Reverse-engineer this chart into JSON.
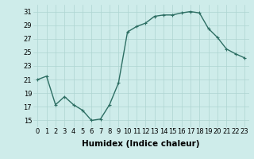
{
  "x": [
    0,
    1,
    2,
    3,
    4,
    5,
    6,
    7,
    8,
    9,
    10,
    11,
    12,
    13,
    14,
    15,
    16,
    17,
    18,
    19,
    20,
    21,
    22,
    23
  ],
  "y": [
    21.0,
    21.5,
    17.3,
    18.5,
    17.3,
    16.5,
    15.0,
    15.2,
    17.3,
    20.5,
    28.0,
    28.8,
    29.3,
    30.3,
    30.5,
    30.5,
    30.8,
    31.0,
    30.8,
    28.5,
    27.2,
    25.5,
    24.8,
    24.2
  ],
  "line_color": "#2d6e63",
  "marker": "+",
  "marker_size": 3,
  "background_color": "#ceecea",
  "grid_color": "#aed4d1",
  "xlabel": "Humidex (Indice chaleur)",
  "xlim": [
    -0.5,
    23.5
  ],
  "ylim": [
    14,
    32
  ],
  "yticks": [
    15,
    17,
    19,
    21,
    23,
    25,
    27,
    29,
    31
  ],
  "xticks": [
    0,
    1,
    2,
    3,
    4,
    5,
    6,
    7,
    8,
    9,
    10,
    11,
    12,
    13,
    14,
    15,
    16,
    17,
    18,
    19,
    20,
    21,
    22,
    23
  ],
  "xlabel_fontsize": 7.5,
  "tick_fontsize": 6,
  "line_width": 1.0,
  "marker_edge_width": 0.8
}
